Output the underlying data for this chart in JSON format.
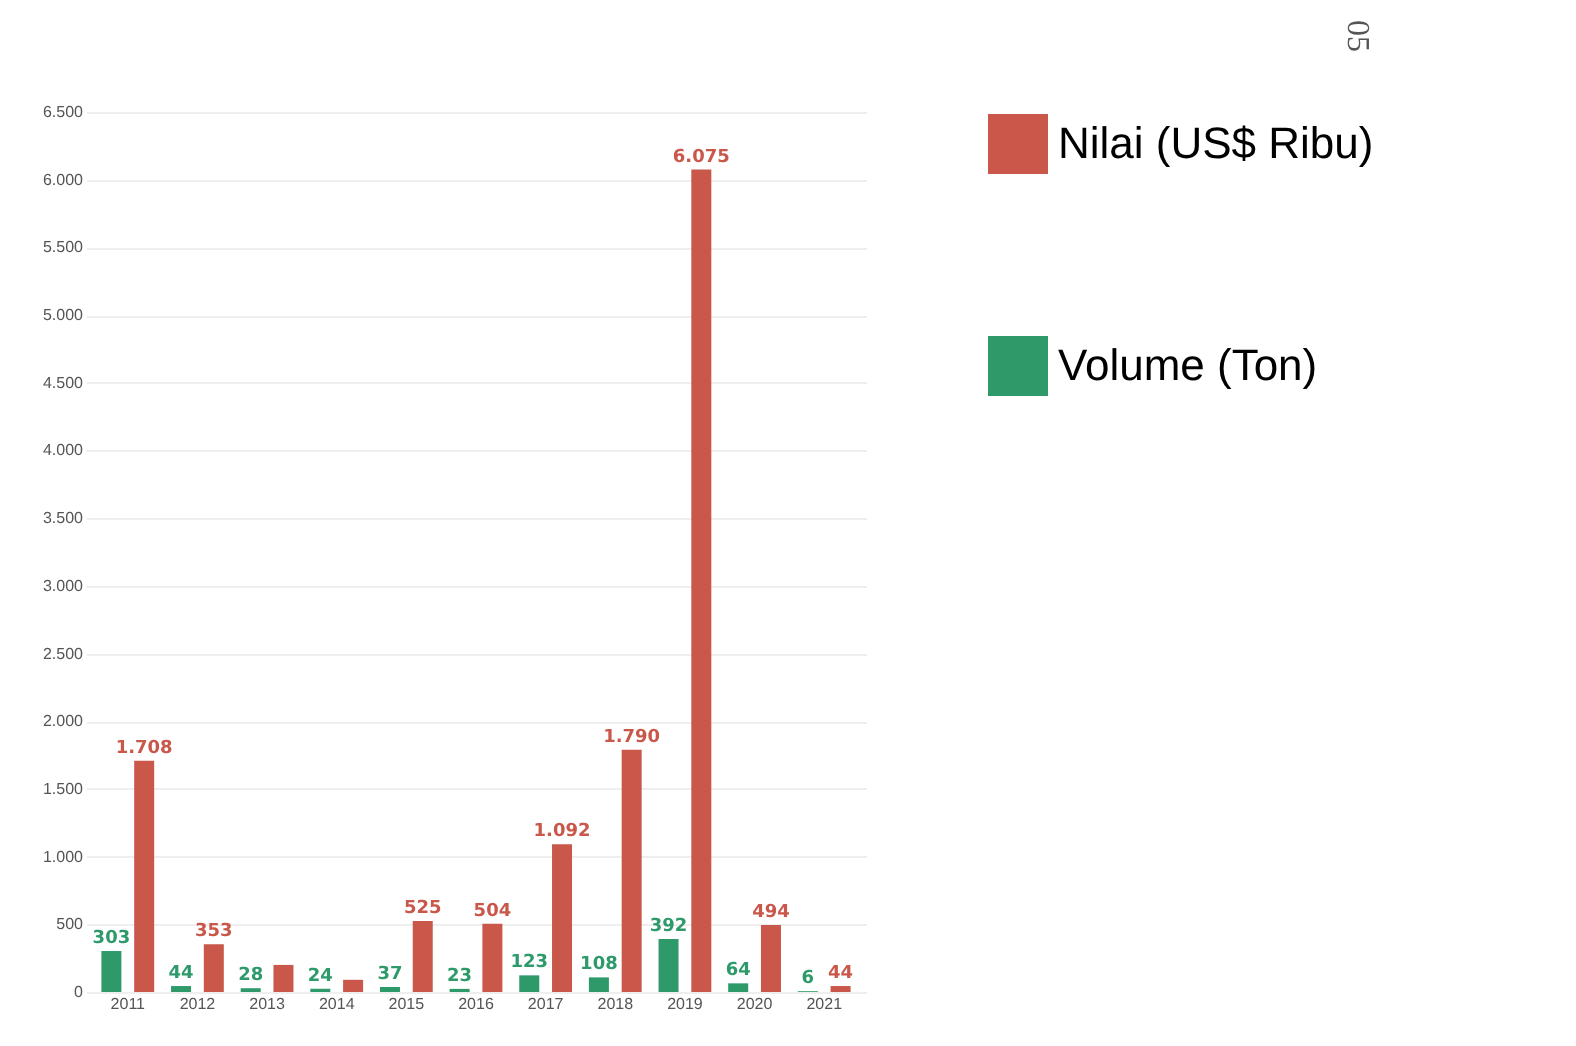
{
  "chart_data": {
    "type": "bar",
    "annotations": [
      "05"
    ],
    "categories": [
      "2011",
      "2012",
      "2013",
      "2014",
      "2015",
      "2016",
      "2017",
      "2018",
      "2019",
      "2020",
      "2021"
    ],
    "series": [
      {
        "name": "Volume (Ton)",
        "color": "#2e9a6a",
        "values": [
          303,
          44,
          28,
          24,
          37,
          23,
          123,
          108,
          392,
          64,
          6
        ],
        "value_labels": [
          "303",
          "44",
          "28",
          "24",
          "37",
          "23",
          "123",
          "108",
          "392",
          "64",
          "6"
        ]
      },
      {
        "name": "Nilai (US$ Ribu)",
        "color": "#c9574a",
        "values": [
          1708,
          353,
          200,
          90,
          525,
          504,
          1092,
          1790,
          6075,
          494,
          44
        ],
        "value_labels": [
          "1.708",
          "353",
          null,
          null,
          "525",
          "504",
          "1.092",
          "1.790",
          "6.075",
          "494",
          "44"
        ]
      }
    ],
    "ylim": [
      0,
      6500
    ],
    "yticks": [
      0,
      {
        "value": 500,
        "label": "500"
      },
      {
        "value": 1000,
        "label": "1.000"
      },
      {
        "value": 1500,
        "label": "1.500"
      },
      {
        "value": 2000,
        "label": "2.000"
      },
      {
        "value": 2500,
        "label": "2.500"
      },
      {
        "value": 3000,
        "label": "3.000"
      },
      {
        "value": 3500,
        "label": "3.500"
      },
      {
        "value": 4000,
        "label": "4.000"
      },
      {
        "value": 4500,
        "label": "4.500"
      },
      {
        "value": 5000,
        "label": "5.000"
      },
      {
        "value": 5500,
        "label": "5.500"
      },
      {
        "value": 6000,
        "label": "6.000"
      },
      {
        "value": 6500,
        "label": "6.500"
      }
    ],
    "grid": "y",
    "legend": "right"
  }
}
